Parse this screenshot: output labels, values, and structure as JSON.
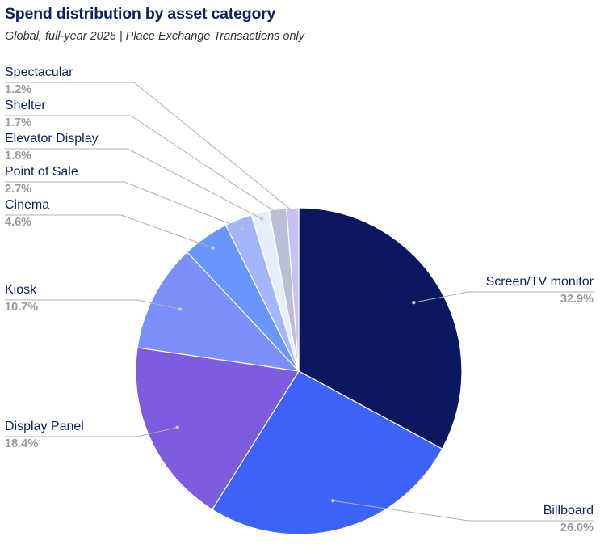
{
  "title": "Spend distribution by asset category",
  "subtitle": "Global, full-year 2025 | Place Exchange Transactions only",
  "chart_data": {
    "type": "pie",
    "title": "Spend distribution by asset category",
    "subtitle": "Global, full-year 2025 | Place Exchange Transactions only",
    "unit": "%",
    "slices": [
      {
        "label": "Screen/TV monitor",
        "value": 32.9,
        "display": "32.9%",
        "color": "#0b1760"
      },
      {
        "label": "Billboard",
        "value": 26.0,
        "display": "26.0%",
        "color": "#3d62f7"
      },
      {
        "label": "Display Panel",
        "value": 18.4,
        "display": "18.4%",
        "color": "#7d5ce0"
      },
      {
        "label": "Kiosk",
        "value": 10.7,
        "display": "10.7%",
        "color": "#7b8ffa"
      },
      {
        "label": "Cinema",
        "value": 4.6,
        "display": "4.6%",
        "color": "#6a95fa"
      },
      {
        "label": "Point of Sale",
        "value": 2.7,
        "display": "2.7%",
        "color": "#a3b6fb"
      },
      {
        "label": "Elevator Display",
        "value": 1.8,
        "display": "1.8%",
        "color": "#e8edfd"
      },
      {
        "label": "Shelter",
        "value": 1.7,
        "display": "1.7%",
        "color": "#b9c0d6"
      },
      {
        "label": "Spectacular",
        "value": 1.2,
        "display": "1.2%",
        "color": "#c7c2f5"
      }
    ]
  }
}
